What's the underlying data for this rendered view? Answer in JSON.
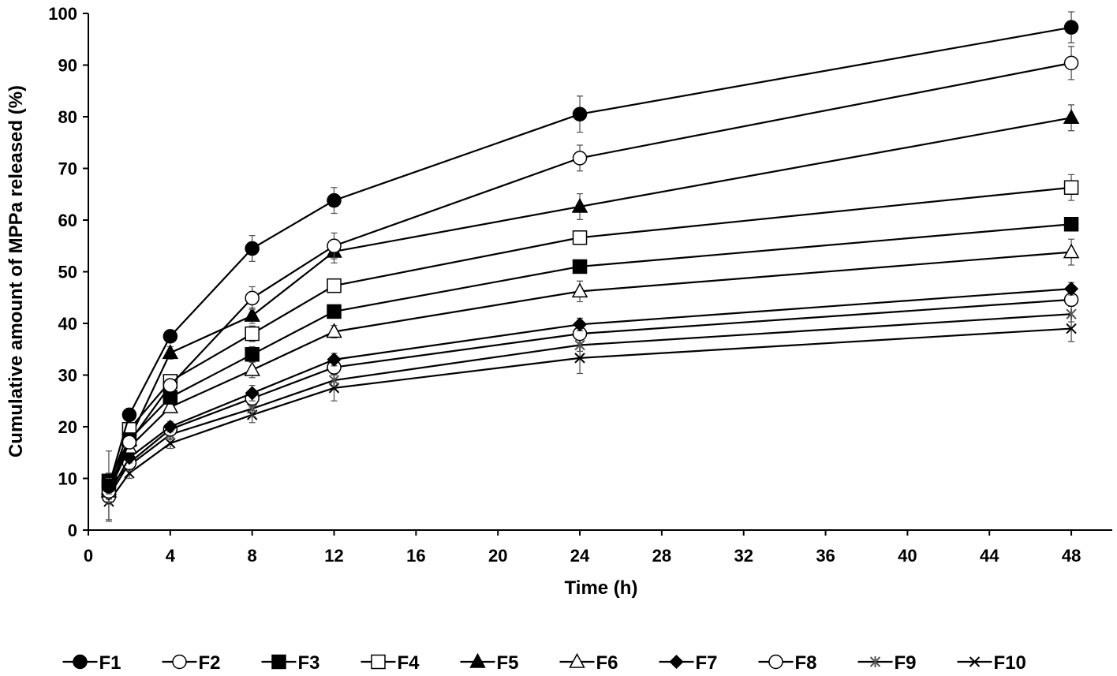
{
  "chart_data": {
    "type": "line",
    "title": "",
    "xlabel": "Time (h)",
    "ylabel": "Cumulative amount of MPPa released (%)",
    "xlim": [
      0,
      50
    ],
    "ylim": [
      0,
      100
    ],
    "xticks": [
      0,
      4,
      8,
      12,
      16,
      20,
      24,
      28,
      32,
      36,
      40,
      44,
      48
    ],
    "yticks": [
      0,
      10,
      20,
      30,
      40,
      50,
      60,
      70,
      80,
      90,
      100
    ],
    "grid": false,
    "legend_position": "bottom",
    "x": [
      1,
      2,
      4,
      8,
      12,
      24,
      48
    ],
    "series": [
      {
        "name": "F1",
        "marker": "circle-filled",
        "values": [
          8.5,
          22.3,
          37.5,
          54.5,
          63.8,
          80.5,
          97.3
        ],
        "errors": [
          1.5,
          1.0,
          1.2,
          2.5,
          2.5,
          3.5,
          3.0
        ]
      },
      {
        "name": "F2",
        "marker": "circle-open",
        "values": [
          7.5,
          17.0,
          28.0,
          44.9,
          55.0,
          72.0,
          90.4
        ],
        "errors": [
          1.5,
          1.0,
          1.2,
          2.2,
          2.5,
          2.5,
          3.2
        ]
      },
      {
        "name": "F3",
        "marker": "square-filled",
        "values": [
          9.5,
          17.5,
          25.7,
          34.0,
          42.3,
          51.0,
          59.2
        ],
        "errors": [
          1.5,
          1.0,
          1.2,
          1.5,
          1.2,
          1.0,
          1.0
        ]
      },
      {
        "name": "F4",
        "marker": "square-open",
        "values": [
          8.5,
          19.5,
          28.8,
          38.0,
          47.3,
          56.6,
          66.3
        ],
        "errors": [
          1.5,
          1.0,
          1.0,
          1.5,
          1.2,
          1.2,
          2.5
        ]
      },
      {
        "name": "F5",
        "marker": "triangle-filled",
        "values": [
          8.0,
          17.5,
          34.3,
          41.5,
          53.9,
          62.6,
          79.8
        ],
        "errors": [
          1.5,
          1.0,
          1.2,
          1.5,
          2.2,
          2.5,
          2.5
        ]
      },
      {
        "name": "F6",
        "marker": "triangle-open",
        "values": [
          7.5,
          16.0,
          23.8,
          31.0,
          38.4,
          46.2,
          53.8
        ],
        "errors": [
          1.5,
          1.0,
          1.0,
          1.5,
          1.2,
          2.0,
          2.5
        ]
      },
      {
        "name": "F7",
        "marker": "diamond-filled",
        "values": [
          7.0,
          14.0,
          20.0,
          26.5,
          33.0,
          39.8,
          46.7
        ],
        "errors": [
          1.5,
          1.0,
          1.0,
          1.5,
          1.2,
          1.2,
          1.2
        ]
      },
      {
        "name": "F8",
        "marker": "circle-open",
        "values": [
          6.5,
          13.0,
          19.5,
          25.5,
          31.5,
          38.0,
          44.6
        ],
        "errors": [
          1.5,
          1.0,
          1.0,
          1.5,
          1.2,
          1.2,
          1.2
        ]
      },
      {
        "name": "F9",
        "marker": "star",
        "values": [
          8.5,
          12.5,
          18.5,
          23.5,
          29.0,
          35.8,
          41.8
        ],
        "errors": [
          6.8,
          1.0,
          1.0,
          1.5,
          1.2,
          1.2,
          1.5
        ]
      },
      {
        "name": "F10",
        "marker": "x",
        "values": [
          5.5,
          11.0,
          16.8,
          22.3,
          27.5,
          33.3,
          39.0
        ],
        "errors": [
          3.5,
          1.0,
          1.0,
          1.5,
          2.5,
          3.0,
          2.5
        ]
      }
    ]
  }
}
